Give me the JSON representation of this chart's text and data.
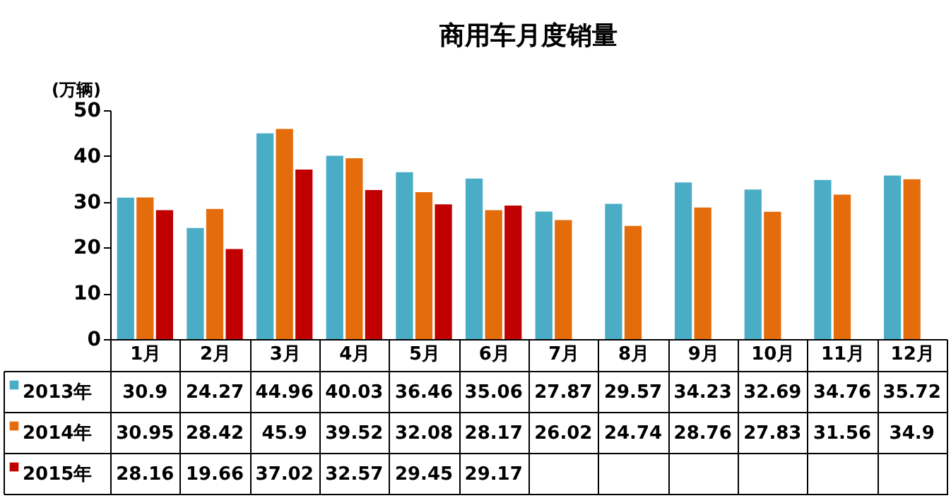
{
  "chart_data": {
    "type": "bar",
    "title": "商用车月度销量",
    "ylabel": "(万辆)",
    "categories": [
      "1月",
      "2月",
      "3月",
      "4月",
      "5月",
      "6月",
      "7月",
      "8月",
      "9月",
      "10月",
      "11月",
      "12月"
    ],
    "series": [
      {
        "name": "2013年",
        "color": "#4bacc6",
        "values": [
          30.9,
          24.27,
          44.96,
          40.03,
          36.46,
          35.06,
          27.87,
          29.57,
          34.23,
          32.69,
          34.76,
          35.72
        ],
        "value_labels": [
          "30.9",
          "24.27",
          "44.96",
          "40.03",
          "36.46",
          "35.06",
          "27.87",
          "29.57",
          "34.23",
          "32.69",
          "34.76",
          "35.72"
        ]
      },
      {
        "name": "2014年",
        "color": "#e46c0a",
        "values": [
          30.95,
          28.42,
          45.9,
          39.52,
          32.08,
          28.17,
          26.02,
          24.74,
          28.76,
          27.83,
          31.56,
          34.9
        ],
        "value_labels": [
          "30.95",
          "28.42",
          "45.9",
          "39.52",
          "32.08",
          "28.17",
          "26.02",
          "24.74",
          "28.76",
          "27.83",
          "31.56",
          "34.9"
        ]
      },
      {
        "name": "2015年",
        "color": "#c00000",
        "values": [
          28.16,
          19.66,
          37.02,
          32.57,
          29.45,
          29.17,
          null,
          null,
          null,
          null,
          null,
          null
        ],
        "value_labels": [
          "28.16",
          "19.66",
          "37.02",
          "32.57",
          "29.45",
          "29.17",
          null,
          null,
          null,
          null,
          null,
          null
        ]
      }
    ],
    "ylim": [
      0,
      50
    ],
    "yticks": [
      0,
      10,
      20,
      30,
      40,
      50
    ],
    "grid": false,
    "legend": "bottom left"
  }
}
